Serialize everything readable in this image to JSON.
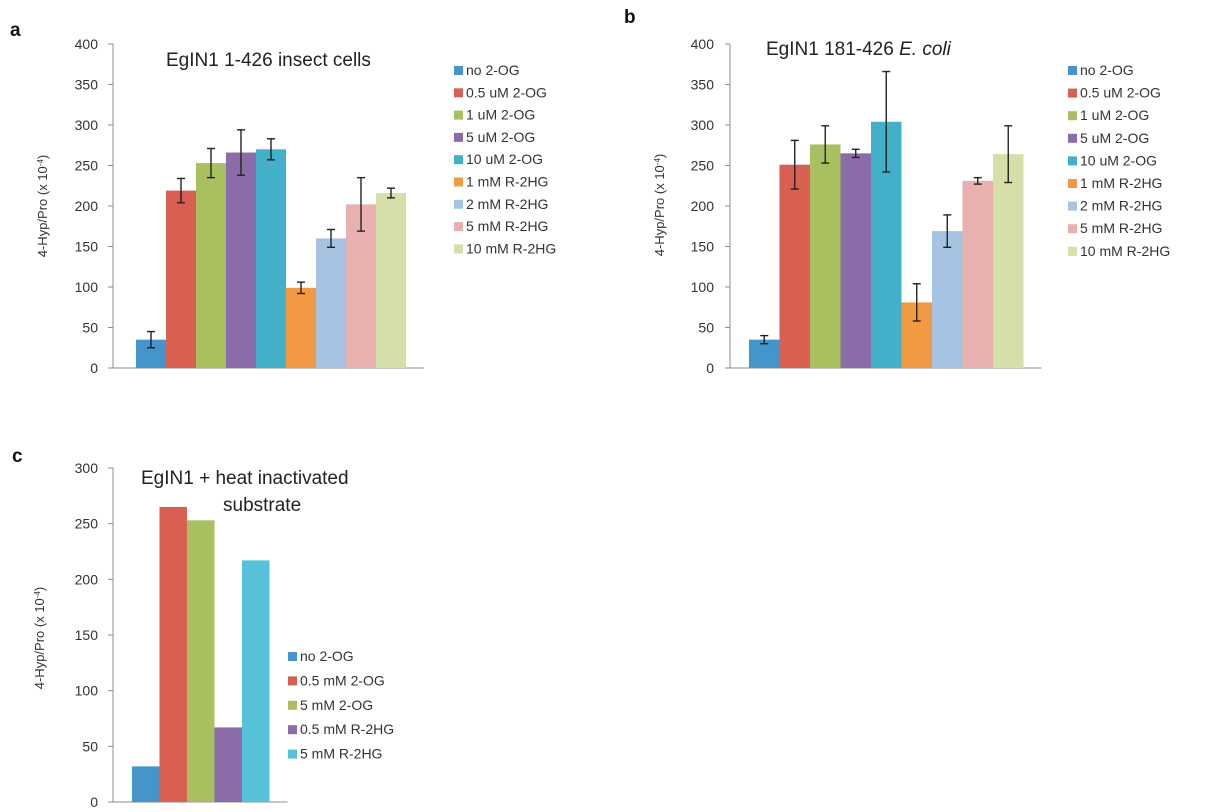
{
  "chart_data": [
    {
      "type": "bar",
      "panel": "a",
      "title": "EgIN1 1-426 insect cells",
      "title_italic": "",
      "ylabel": "4-Hyp/Pro (x 10",
      "ylabel_sup": "-4",
      "ylabel_tail": ")",
      "ylim": [
        0,
        400
      ],
      "yticks": [
        0,
        50,
        100,
        150,
        200,
        250,
        300,
        350,
        400
      ],
      "legend_position": "right",
      "series": [
        {
          "name": "no 2-OG",
          "value": 35,
          "error": 10,
          "color": "#4395cc"
        },
        {
          "name": "0.5 uM 2-OG",
          "value": 219,
          "error": 15,
          "color": "#d85f52"
        },
        {
          "name": "1 uM 2-OG",
          "value": 253,
          "error": 18,
          "color": "#a8c060"
        },
        {
          "name": "5 uM 2-OG",
          "value": 266,
          "error": 28,
          "color": "#8a6ca8"
        },
        {
          "name": "10 uM 2-OG",
          "value": 270,
          "error": 13,
          "color": "#42b0c8"
        },
        {
          "name": "1 mM R-2HG",
          "value": 99,
          "error": 7,
          "color": "#f19a43"
        },
        {
          "name": "2 mM R-2HG",
          "value": 160,
          "error": 11,
          "color": "#a7c3e3"
        },
        {
          "name": "5 mM R-2HG",
          "value": 202,
          "error": 33,
          "color": "#e8b0ae"
        },
        {
          "name": "10 mM R-2HG",
          "value": 216,
          "error": 6,
          "color": "#d5e0a8"
        }
      ]
    },
    {
      "type": "bar",
      "panel": "b",
      "title": "EgIN1 181-426 ",
      "title_italic": "E. coli",
      "ylabel": "4-Hyp/Pro (x 10",
      "ylabel_sup": "-4",
      "ylabel_tail": ")",
      "ylim": [
        0,
        400
      ],
      "yticks": [
        0,
        50,
        100,
        150,
        200,
        250,
        300,
        350,
        400
      ],
      "legend_position": "right",
      "series": [
        {
          "name": "no 2-OG",
          "value": 35,
          "error": 5,
          "color": "#4395cc"
        },
        {
          "name": "0.5 uM 2-OG",
          "value": 251,
          "error": 30,
          "color": "#d85f52"
        },
        {
          "name": "1 uM 2-OG",
          "value": 276,
          "error": 23,
          "color": "#a8c060"
        },
        {
          "name": "5 uM 2-OG",
          "value": 265,
          "error": 5,
          "color": "#8a6ca8"
        },
        {
          "name": "10 uM 2-OG",
          "value": 304,
          "error": 62,
          "color": "#42b0c8"
        },
        {
          "name": "1 mM R-2HG",
          "value": 81,
          "error": 23,
          "color": "#f19a43"
        },
        {
          "name": "2 mM R-2HG",
          "value": 169,
          "error": 20,
          "color": "#a7c3e3"
        },
        {
          "name": "5 mM R-2HG",
          "value": 231,
          "error": 4,
          "color": "#e8b0ae"
        },
        {
          "name": "10 mM R-2HG",
          "value": 264,
          "error": 35,
          "color": "#d5e0a8"
        }
      ]
    },
    {
      "type": "bar",
      "panel": "c",
      "title": "EgIN1 + heat inactivated",
      "title_line2": "substrate",
      "title_italic": "",
      "ylabel": "4-Hyp/Pro (x 10",
      "ylabel_sup": "-4",
      "ylabel_tail": ")",
      "ylim": [
        0,
        300
      ],
      "yticks": [
        0,
        50,
        100,
        150,
        200,
        250,
        300
      ],
      "legend_position": "right",
      "series": [
        {
          "name": "no 2-OG",
          "value": 32,
          "color": "#4395cc"
        },
        {
          "name": "0.5 mM 2-OG",
          "value": 265,
          "color": "#d85f52"
        },
        {
          "name": "5 mM 2-OG",
          "value": 253,
          "color": "#a8c060"
        },
        {
          "name": "0.5 mM R-2HG",
          "value": 67,
          "color": "#8a6ca8"
        },
        {
          "name": "5 mM R-2HG",
          "value": 217,
          "color": "#55c2d9"
        }
      ]
    }
  ]
}
